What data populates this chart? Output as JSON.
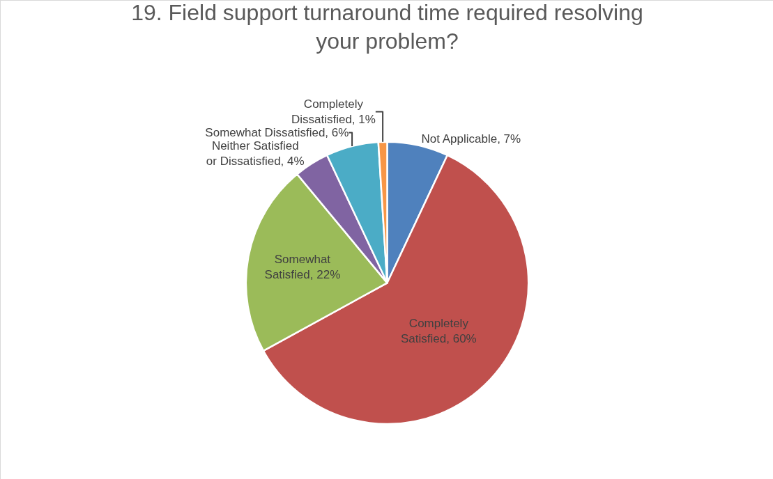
{
  "chart_data": {
    "type": "pie",
    "title": "19. Field support turnaround time required resolving your problem?",
    "categories": [
      "Not Applicable",
      "Completely Satisfied",
      "Somewhat Satisfied",
      "Neither Satisfied or Dissatisfied",
      "Somewhat Dissatisfied",
      "Completely Dissatisfied"
    ],
    "values": [
      7,
      60,
      22,
      4,
      6,
      1
    ],
    "value_labels": [
      "7%",
      "60%",
      "22%",
      "4%",
      "6%",
      "1%"
    ],
    "colors": [
      "#4f81bd",
      "#c0504d",
      "#9bbb59",
      "#8064a2",
      "#4bacc6",
      "#f79646"
    ],
    "legend": false
  }
}
